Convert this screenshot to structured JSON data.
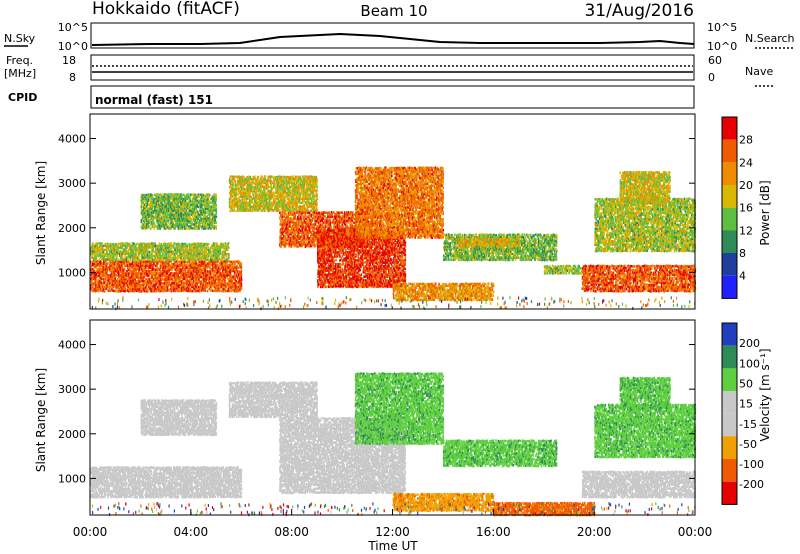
{
  "header": {
    "station": "Hokkaido (fitACF)",
    "beam": "Beam 10",
    "date": "31/Aug/2016"
  },
  "summary": {
    "nsky_label": "N.Sky",
    "nsky_ticks": [
      "10^5",
      "10^0"
    ],
    "nsearch_label": "N.Search",
    "freq_label_1": "Freq.",
    "freq_label_2": "[MHz]",
    "freq_ticks": [
      "18",
      "8"
    ],
    "nave_label": "Nave",
    "nave_ticks": [
      "60",
      "0"
    ],
    "cpid_label": "CPID",
    "cpid_value": "normal (fast) 151"
  },
  "colors": {
    "power_scale": [
      "#1f1fff",
      "#1f3f9f",
      "#2e8b57",
      "#5cbf3f",
      "#d8b800",
      "#f08c00",
      "#f05a00",
      "#e60000"
    ],
    "velocity_scale": [
      "#e60000",
      "#f05a00",
      "#f0a000",
      "#c8c8c8",
      "#c8c8c8",
      "#5fcf3f",
      "#2e8b57",
      "#1f3fbf"
    ]
  },
  "chart_data": [
    {
      "type": "heatmap",
      "name": "power",
      "xlabel": "",
      "ylabel": "Slant Range [km]",
      "colorbar_label": "Power [dB]",
      "colorbar_ticks": [
        "28",
        "24",
        "20",
        "16",
        "12",
        "8",
        "4"
      ],
      "y_ticks": [
        "4000",
        "3000",
        "2000",
        "1000"
      ],
      "xlim": [
        0,
        24
      ],
      "ylim": [
        180,
        4550
      ],
      "clim": [
        0,
        32
      ],
      "regions": [
        {
          "t": [
            0,
            6
          ],
          "r": [
            600,
            1300
          ],
          "level": 26
        },
        {
          "t": [
            0,
            5.5
          ],
          "r": [
            1300,
            1700
          ],
          "level": 16
        },
        {
          "t": [
            2,
            5
          ],
          "r": [
            2000,
            2800
          ],
          "level": 14
        },
        {
          "t": [
            5.5,
            9
          ],
          "r": [
            2400,
            3200
          ],
          "level": 18
        },
        {
          "t": [
            7.5,
            11
          ],
          "r": [
            1600,
            2400
          ],
          "level": 26
        },
        {
          "t": [
            9,
            12.5
          ],
          "r": [
            700,
            2000
          ],
          "level": 28
        },
        {
          "t": [
            10.5,
            14
          ],
          "r": [
            1800,
            3400
          ],
          "level": 24
        },
        {
          "t": [
            12,
            16
          ],
          "r": [
            400,
            800
          ],
          "level": 22
        },
        {
          "t": [
            14,
            18.5
          ],
          "r": [
            1300,
            1900
          ],
          "level": 14
        },
        {
          "t": [
            14.5,
            17
          ],
          "r": [
            1600,
            1800
          ],
          "level": 20
        },
        {
          "t": [
            18,
            19.5
          ],
          "r": [
            1000,
            1200
          ],
          "level": 16
        },
        {
          "t": [
            19.5,
            24
          ],
          "r": [
            600,
            1200
          ],
          "level": 26
        },
        {
          "t": [
            20,
            24
          ],
          "r": [
            1500,
            2700
          ],
          "level": 16
        },
        {
          "t": [
            21,
            23
          ],
          "r": [
            2600,
            3300
          ],
          "level": 18
        }
      ]
    },
    {
      "type": "heatmap",
      "name": "velocity",
      "xlabel": "Time UT",
      "ylabel": "Slant Range [km]",
      "colorbar_label": "Velocity [m s⁻¹]",
      "colorbar_ticks": [
        "200",
        "100",
        "50",
        "15",
        "-15",
        "-50",
        "-100",
        "-200"
      ],
      "y_ticks": [
        "4000",
        "3000",
        "2000",
        "1000"
      ],
      "x_ticks": [
        "00:00",
        "04:00",
        "08:00",
        "12:00",
        "16:00",
        "20:00",
        "00:00"
      ],
      "xlim": [
        0,
        24
      ],
      "ylim": [
        180,
        4550
      ],
      "clim": [
        -250,
        250
      ],
      "regions": [
        {
          "t": [
            0,
            6
          ],
          "r": [
            600,
            1300
          ],
          "level": 0
        },
        {
          "t": [
            2,
            5
          ],
          "r": [
            2000,
            2800
          ],
          "level": 0
        },
        {
          "t": [
            5.5,
            9
          ],
          "r": [
            2400,
            3200
          ],
          "level": 0
        },
        {
          "t": [
            7.5,
            12.5
          ],
          "r": [
            700,
            2400
          ],
          "level": 0
        },
        {
          "t": [
            10.5,
            14
          ],
          "r": [
            1800,
            3400
          ],
          "level": 40
        },
        {
          "t": [
            12,
            16
          ],
          "r": [
            300,
            700
          ],
          "level": -40
        },
        {
          "t": [
            14,
            18.5
          ],
          "r": [
            1300,
            1900
          ],
          "level": 40
        },
        {
          "t": [
            16,
            20
          ],
          "r": [
            200,
            500
          ],
          "level": -60
        },
        {
          "t": [
            19.5,
            24
          ],
          "r": [
            600,
            1200
          ],
          "level": 0
        },
        {
          "t": [
            20,
            24
          ],
          "r": [
            1500,
            2700
          ],
          "level": 40
        },
        {
          "t": [
            21,
            23
          ],
          "r": [
            2600,
            3300
          ],
          "level": 40
        }
      ]
    }
  ]
}
